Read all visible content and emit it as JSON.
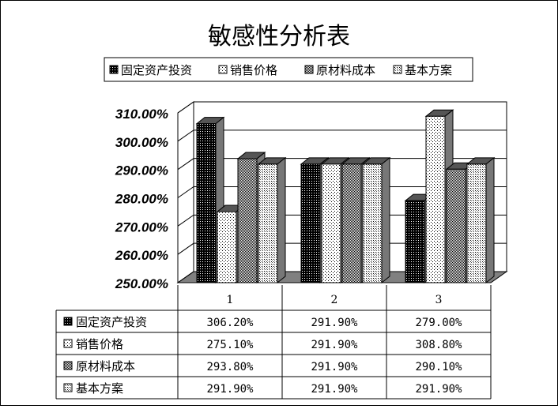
{
  "chart_data": {
    "type": "bar",
    "title": "敏感性分析表",
    "categories": [
      "1",
      "2",
      "3"
    ],
    "series": [
      {
        "name": "固定资产投资",
        "values": [
          306.2,
          291.9,
          279.0
        ],
        "labels": [
          "306.20%",
          "291.90%",
          "279.00%"
        ],
        "pattern": "dense"
      },
      {
        "name": "销售价格",
        "values": [
          275.1,
          291.9,
          308.8
        ],
        "labels": [
          "275.10%",
          "291.90%",
          "308.80%"
        ],
        "pattern": "sparse"
      },
      {
        "name": "原材料成本",
        "values": [
          293.8,
          291.9,
          290.1
        ],
        "labels": [
          "293.80%",
          "291.90%",
          "290.10%"
        ],
        "pattern": "checker"
      },
      {
        "name": "基本方案",
        "values": [
          291.9,
          291.9,
          291.9
        ],
        "labels": [
          "291.90%",
          "291.90%",
          "291.90%"
        ],
        "pattern": "grid"
      }
    ],
    "ylim": [
      250,
      310
    ],
    "yticks": [
      "250.00%",
      "260.00%",
      "270.00%",
      "280.00%",
      "290.00%",
      "300.00%",
      "310.00%"
    ],
    "legend_position": "top",
    "grid": true,
    "data_table": true
  }
}
